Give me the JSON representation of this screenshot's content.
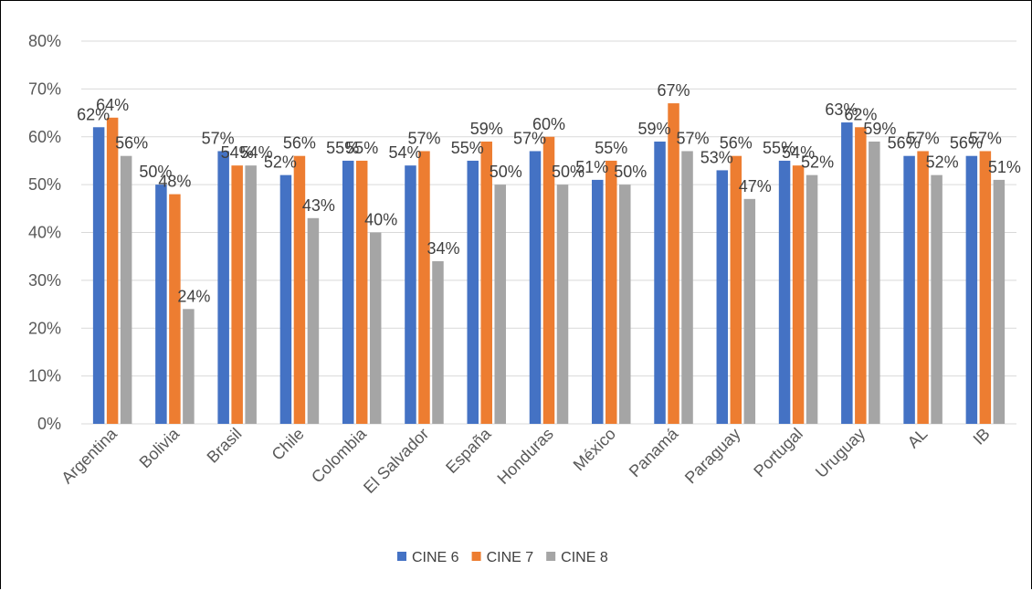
{
  "chart_data": {
    "type": "bar",
    "categories": [
      "Argentina",
      "Bolivia",
      "Brasil",
      "Chile",
      "Colombia",
      "El Salvador",
      "España",
      "Honduras",
      "México",
      "Panamá",
      "Paraguay",
      "Portugal",
      "Uruguay",
      "AL",
      "IB"
    ],
    "series": [
      {
        "name": "CINE 6",
        "color": "#4472C4",
        "values": [
          62,
          50,
          57,
          52,
          55,
          54,
          55,
          57,
          51,
          59,
          53,
          55,
          63,
          56,
          56
        ],
        "labels": [
          "62%",
          "50%",
          "57%",
          "52%",
          "55%",
          "54%",
          "55%",
          "57%",
          "51%",
          "59%",
          "53%",
          "55%",
          "63%",
          "56%",
          "56%"
        ]
      },
      {
        "name": "CINE 7",
        "color": "#ED7D31",
        "values": [
          64,
          48,
          54,
          56,
          55,
          57,
          59,
          60,
          55,
          67,
          56,
          54,
          62,
          57,
          57
        ],
        "labels": [
          "64%",
          "48%",
          "54%",
          "56%",
          "55%",
          "57%",
          "59%",
          "60%",
          "55%",
          "67%",
          "56%",
          "54%",
          "62%",
          "57%",
          "57%"
        ]
      },
      {
        "name": "CINE 8",
        "color": "#A5A5A5",
        "values": [
          56,
          24,
          54,
          43,
          40,
          34,
          50,
          50,
          50,
          57,
          47,
          52,
          59,
          52,
          51
        ],
        "labels": [
          "56%",
          "24%",
          "54%",
          "43%",
          "40%",
          "34%",
          "50%",
          "50%",
          "50%",
          "57%",
          "47%",
          "52%",
          "59%",
          "52%",
          "51%"
        ]
      }
    ],
    "y_ticks": [
      "0%",
      "10%",
      "20%",
      "30%",
      "40%",
      "50%",
      "60%",
      "70%",
      "80%"
    ],
    "ylim": [
      0,
      80
    ],
    "grid": true,
    "legend": "bottom"
  }
}
